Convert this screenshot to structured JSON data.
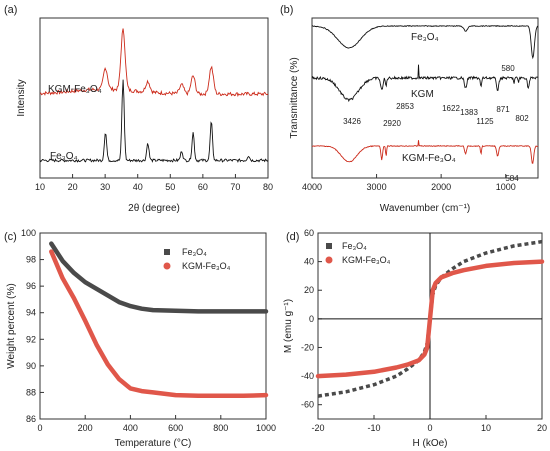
{
  "chart_data": [
    {
      "panel": "(a)",
      "type": "line",
      "xlabel": "2θ (degree)",
      "ylabel": "Intensity",
      "xlim": [
        10,
        80
      ],
      "xticks": [
        "10",
        "20",
        "30",
        "40",
        "50",
        "60",
        "70",
        "80"
      ],
      "series": [
        {
          "name": "KGM-Fe3O4",
          "name_display": "KGM-Fe₃O₄",
          "color": "#cc2a1a",
          "peaks": [
            [
              30.1,
              0.35
            ],
            [
              35.5,
              1.0
            ],
            [
              43.1,
              0.18
            ],
            [
              53.5,
              0.15
            ],
            [
              57.0,
              0.3
            ],
            [
              62.6,
              0.45
            ]
          ]
        },
        {
          "name": "Fe3O4",
          "name_display": "Fe₃O₄",
          "color": "#111111",
          "peaks": [
            [
              30.1,
              0.35
            ],
            [
              35.5,
              1.0
            ],
            [
              43.1,
              0.22
            ],
            [
              53.5,
              0.12
            ],
            [
              57.0,
              0.35
            ],
            [
              62.6,
              0.48
            ],
            [
              74.0,
              0.06
            ]
          ]
        }
      ]
    },
    {
      "panel": "(b)",
      "type": "line",
      "xlabel": "Wavenumber (cm⁻¹)",
      "ylabel": "Transmittance (%)",
      "xlim": [
        4000,
        500
      ],
      "xticks": [
        "4000",
        "3000",
        "2000",
        "1000"
      ],
      "series": [
        {
          "name": "Fe3O4",
          "name_display": "Fe₃O₄",
          "color": "#111111",
          "bands": [
            "580"
          ]
        },
        {
          "name": "KGM",
          "name_display": "KGM",
          "color": "#111111",
          "bands": [
            "3426",
            "2920",
            "2853",
            "1622",
            "1383",
            "1125",
            "871",
            "802"
          ]
        },
        {
          "name": "KGM-Fe3O4",
          "name_display": "KGM-Fe₃O₄",
          "color": "#cc2a1a",
          "bands": [
            "584"
          ]
        }
      ]
    },
    {
      "panel": "(c)",
      "type": "line",
      "xlabel": "Temperature (°C)",
      "ylabel": "Weight percent (%)",
      "xlim": [
        0,
        1000
      ],
      "ylim": [
        86,
        100
      ],
      "xticks": [
        "0",
        "200",
        "400",
        "600",
        "800",
        "1000"
      ],
      "yticks": [
        "86",
        "88",
        "90",
        "92",
        "94",
        "96",
        "98",
        "100"
      ],
      "legend": "top-right",
      "series": [
        {
          "name": "Fe3O4",
          "name_display": "Fe₃O₄",
          "color": "#4a4a4a",
          "x": [
            50,
            100,
            150,
            200,
            250,
            300,
            350,
            400,
            450,
            500,
            600,
            700,
            800,
            900,
            1000
          ],
          "y": [
            99.2,
            97.9,
            97.0,
            96.3,
            95.8,
            95.3,
            94.8,
            94.5,
            94.3,
            94.2,
            94.15,
            94.1,
            94.1,
            94.1,
            94.1
          ]
        },
        {
          "name": "KGM-Fe3O4",
          "name_display": "KGM-Fe₃O₄",
          "color": "#e0574a",
          "x": [
            50,
            100,
            150,
            200,
            250,
            300,
            350,
            400,
            450,
            500,
            600,
            700,
            800,
            900,
            1000
          ],
          "y": [
            98.6,
            96.6,
            95.1,
            93.4,
            91.6,
            90.1,
            89.0,
            88.3,
            88.1,
            88.0,
            87.8,
            87.75,
            87.75,
            87.75,
            87.8
          ]
        }
      ]
    },
    {
      "panel": "(d)",
      "type": "line",
      "xlabel": "H (kOe)",
      "ylabel": "M (emu g⁻¹)",
      "xlim": [
        -20,
        20
      ],
      "ylim": [
        -70,
        60
      ],
      "xticks": [
        "-20",
        "-10",
        "0",
        "10",
        "20"
      ],
      "yticks": [
        "-60",
        "-40",
        "-20",
        "0",
        "20",
        "40",
        "60"
      ],
      "legend": "top-left",
      "series": [
        {
          "name": "Fe3O4",
          "name_display": "Fe₃O₄",
          "color": "#4a4a4a",
          "x": [
            -20,
            -15,
            -10,
            -6,
            -4,
            -2,
            -1,
            -0.5,
            0,
            0.5,
            1,
            2,
            4,
            6,
            10,
            15,
            20
          ],
          "y": [
            -54,
            -51,
            -46,
            -40,
            -35,
            -29,
            -23,
            -17,
            0,
            17,
            23,
            29,
            35,
            40,
            46,
            51,
            54
          ]
        },
        {
          "name": "KGM-Fe3O4",
          "name_display": "KGM-Fe₃O₄",
          "color": "#e0574a",
          "x": [
            -20,
            -15,
            -10,
            -6,
            -4,
            -2,
            -1,
            -0.5,
            0,
            0.5,
            1,
            2,
            4,
            6,
            10,
            15,
            20
          ],
          "y": [
            -40,
            -39,
            -37,
            -34,
            -32,
            -29,
            -25,
            -20,
            0,
            20,
            25,
            29,
            32,
            34,
            37,
            39,
            40
          ]
        }
      ]
    }
  ]
}
